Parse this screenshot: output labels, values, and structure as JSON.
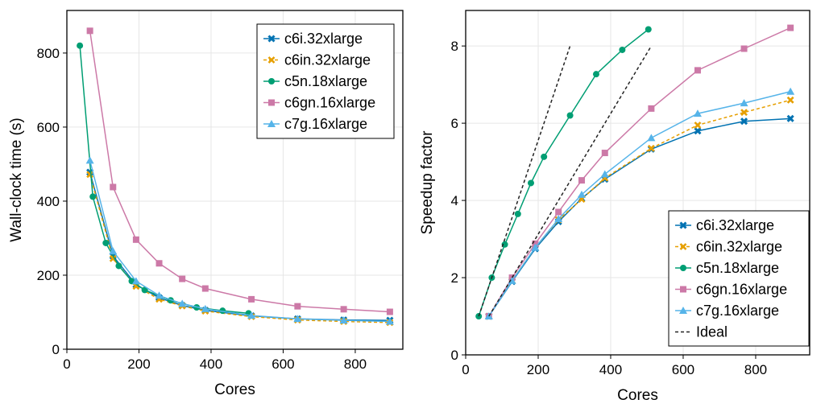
{
  "chart_data": [
    {
      "type": "line",
      "xlabel": "Cores",
      "ylabel": "Wall-clock time (s)",
      "xlim": [
        0,
        932
      ],
      "ylim": [
        0,
        915
      ],
      "xticks": [
        0,
        200,
        400,
        600,
        800
      ],
      "yticks": [
        0,
        200,
        400,
        600,
        800
      ],
      "grid": true,
      "legend": "top-right",
      "series": [
        {
          "name": "c6i.32xlarge",
          "color": "#0072b2",
          "marker": "x-cross",
          "dash": false,
          "x": [
            64,
            128,
            192,
            256,
            320,
            384,
            512,
            640,
            768,
            896
          ],
          "y": [
            478,
            252,
            174,
            139,
            118,
            105,
            90,
            82,
            79,
            78
          ]
        },
        {
          "name": "c6in.32xlarge",
          "color": "#e69f00",
          "marker": "x",
          "dash": true,
          "x": [
            64,
            128,
            192,
            256,
            320,
            384,
            512,
            640,
            768,
            896
          ],
          "y": [
            472,
            245,
            170,
            135,
            117,
            103,
            88,
            79,
            75,
            72
          ]
        },
        {
          "name": "c5n.18xlarge",
          "color": "#009e73",
          "marker": "circle",
          "dash": false,
          "x": [
            36,
            72,
            108,
            144,
            180,
            216,
            288,
            360,
            432,
            504
          ],
          "y": [
            820,
            412,
            287,
            225,
            184,
            160,
            132,
            113,
            104,
            97
          ]
        },
        {
          "name": "c6gn.16xlarge",
          "color": "#cc79a7",
          "marker": "square",
          "dash": false,
          "x": [
            64,
            128,
            192,
            256,
            320,
            384,
            512,
            640,
            768,
            896
          ],
          "y": [
            860,
            438,
            296,
            232,
            190,
            164,
            135,
            116,
            108,
            101
          ]
        },
        {
          "name": "c7g.16xlarge",
          "color": "#56b4e9",
          "marker": "triangle",
          "dash": false,
          "x": [
            64,
            128,
            192,
            256,
            320,
            384,
            512,
            640,
            768,
            896
          ],
          "y": [
            510,
            265,
            184,
            145,
            123,
            109,
            91,
            82,
            78,
            75
          ]
        }
      ]
    },
    {
      "type": "line",
      "xlabel": "Cores",
      "ylabel": "Speedup factor",
      "xlim": [
        0,
        949
      ],
      "ylim": [
        0,
        8.92
      ],
      "xticks": [
        0,
        200,
        400,
        600,
        800
      ],
      "yticks": [
        0,
        2,
        4,
        6,
        8
      ],
      "grid": true,
      "legend": "bottom-right",
      "series": [
        {
          "name": "c6i.32xlarge",
          "color": "#0072b2",
          "marker": "x-cross",
          "dash": false,
          "x": [
            64,
            128,
            192,
            256,
            320,
            384,
            512,
            640,
            768,
            896
          ],
          "y": [
            1,
            1.9,
            2.75,
            3.45,
            4.05,
            4.55,
            5.33,
            5.8,
            6.05,
            6.12
          ]
        },
        {
          "name": "c6in.32xlarge",
          "color": "#e69f00",
          "marker": "x",
          "dash": true,
          "x": [
            64,
            128,
            192,
            256,
            320,
            384,
            512,
            640,
            768,
            896
          ],
          "y": [
            1,
            1.93,
            2.78,
            3.5,
            4.03,
            4.58,
            5.35,
            5.95,
            6.28,
            6.6
          ]
        },
        {
          "name": "c5n.18xlarge",
          "color": "#009e73",
          "marker": "circle",
          "dash": false,
          "x": [
            36,
            72,
            108,
            144,
            180,
            216,
            288,
            360,
            432,
            504
          ],
          "y": [
            1,
            2,
            2.86,
            3.65,
            4.45,
            5.13,
            6.2,
            7.27,
            7.9,
            8.43
          ]
        },
        {
          "name": "c6gn.16xlarge",
          "color": "#cc79a7",
          "marker": "square",
          "dash": false,
          "x": [
            64,
            128,
            192,
            256,
            320,
            384,
            512,
            640,
            768,
            896
          ],
          "y": [
            1,
            2.0,
            2.88,
            3.7,
            4.52,
            5.23,
            6.38,
            7.37,
            7.93,
            8.47
          ]
        },
        {
          "name": "c7g.16xlarge",
          "color": "#56b4e9",
          "marker": "triangle",
          "dash": false,
          "x": [
            64,
            128,
            192,
            256,
            320,
            384,
            512,
            640,
            768,
            896
          ],
          "y": [
            1,
            1.92,
            2.78,
            3.52,
            4.15,
            4.68,
            5.62,
            6.25,
            6.52,
            6.82
          ]
        },
        {
          "name": "Ideal",
          "color": "#222222",
          "marker": "none",
          "dash": true,
          "ideal": true,
          "segments": [
            {
              "x": [
                36,
                288
              ],
              "y": [
                1,
                8
              ]
            },
            {
              "x": [
                64,
                512
              ],
              "y": [
                1,
                8
              ]
            }
          ]
        }
      ]
    }
  ]
}
